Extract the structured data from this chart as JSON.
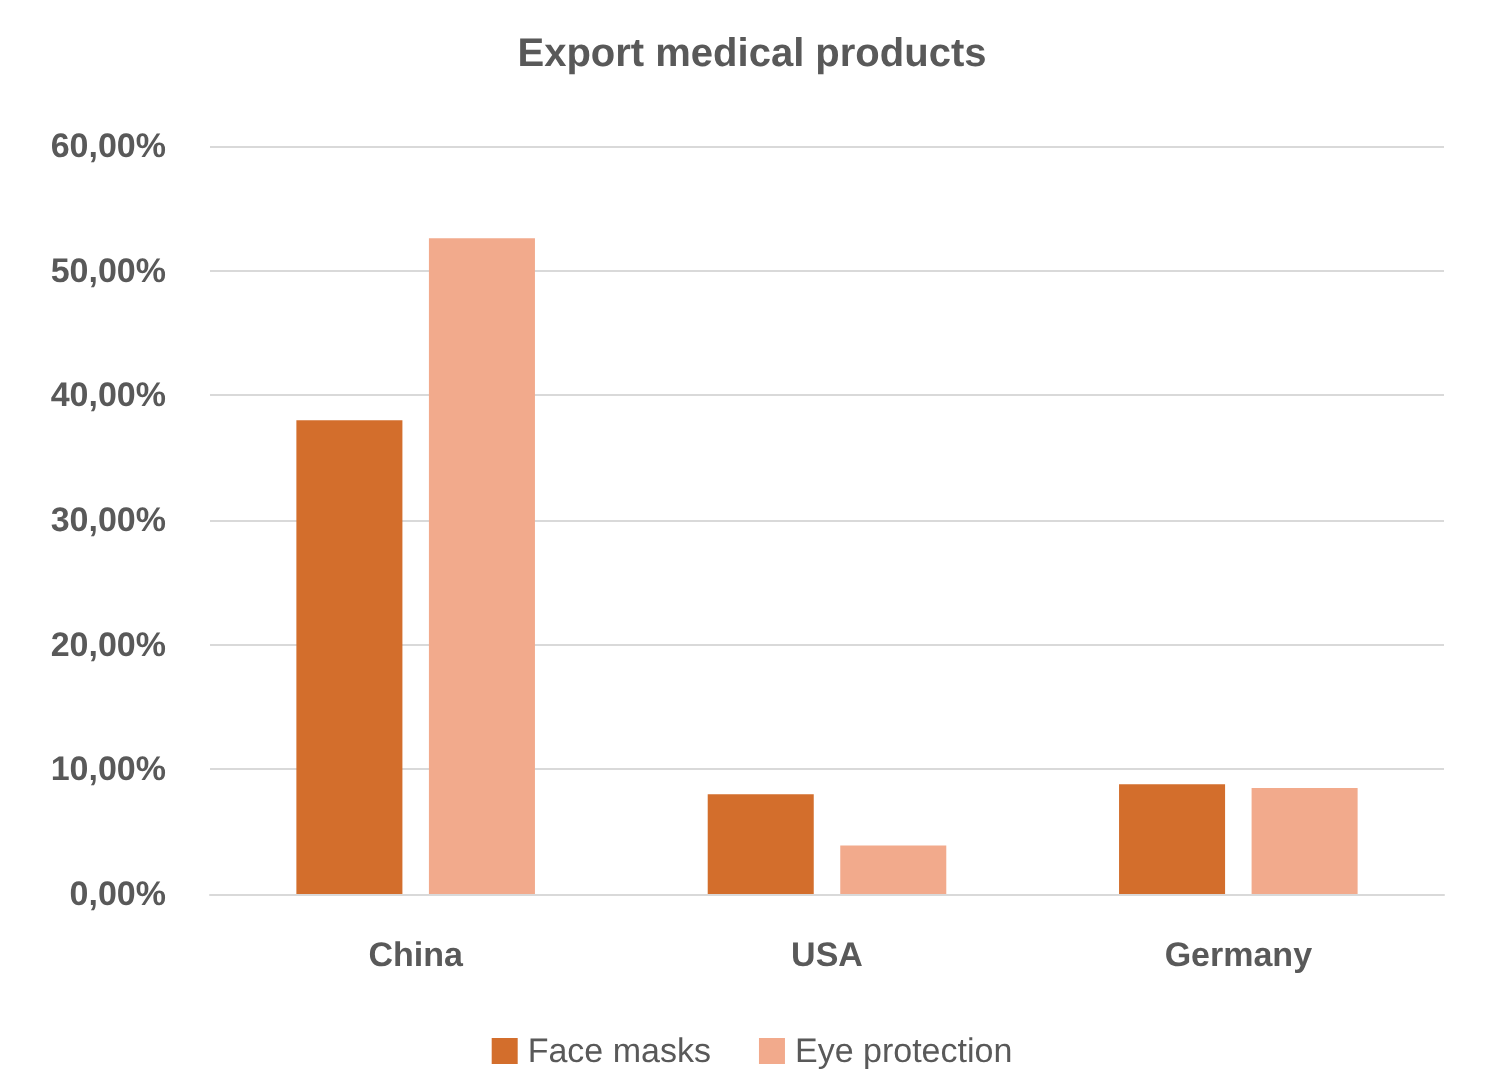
{
  "chart_data": {
    "type": "bar",
    "title": "Export medical products",
    "categories": [
      "China",
      "USA",
      "Germany"
    ],
    "series": [
      {
        "name": "Face masks",
        "color": "#d36e2c",
        "values": [
          38.0,
          8.0,
          8.8
        ]
      },
      {
        "name": "Eye protection",
        "color": "#f2aa8c",
        "values": [
          52.6,
          3.9,
          8.5
        ]
      }
    ],
    "ylim": [
      0,
      60
    ],
    "yticks": [
      {
        "value": 0,
        "label": "0,00%"
      },
      {
        "value": 10,
        "label": "10,00%"
      },
      {
        "value": 20,
        "label": "20,00%"
      },
      {
        "value": 30,
        "label": "30,00%"
      },
      {
        "value": 40,
        "label": "40,00%"
      },
      {
        "value": 50,
        "label": "50,00%"
      },
      {
        "value": 60,
        "label": "60,00%"
      }
    ],
    "grid": "y",
    "legend": "bottom"
  }
}
